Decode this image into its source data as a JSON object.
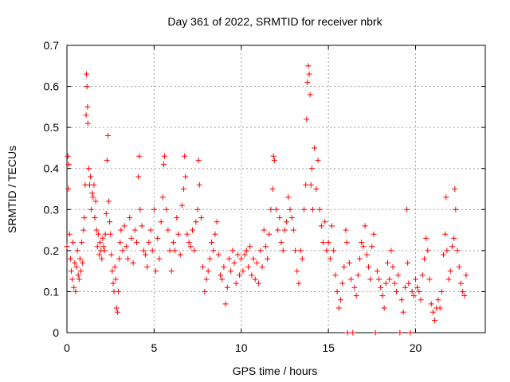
{
  "chart_data": {
    "type": "scatter",
    "title": "Day 361 of 2022, SRMTID for receiver nbrk",
    "xlabel": "GPS time / hours",
    "ylabel": "SRMTID / TECUs",
    "xlim": [
      0,
      24
    ],
    "ylim": [
      0,
      0.7
    ],
    "xticks": [
      0,
      5,
      10,
      15,
      20
    ],
    "xtick_labels": [
      "0",
      "5",
      "10",
      "15",
      "20"
    ],
    "yticks": [
      0,
      0.1,
      0.2,
      0.3,
      0.4,
      0.5,
      0.6,
      0.7
    ],
    "ytick_labels": [
      "0",
      "0.1",
      "0.2",
      "0.3",
      "0.4",
      "0.5",
      "0.6",
      "0.7"
    ],
    "grid": true,
    "marker": "+",
    "series_color": "#ff0000",
    "series": [
      {
        "name": "SRMTID",
        "points": [
          [
            0.0,
            0.21
          ],
          [
            0.05,
            0.43
          ],
          [
            0.08,
            0.35
          ],
          [
            0.1,
            0.41
          ],
          [
            0.15,
            0.24
          ],
          [
            0.2,
            0.18
          ],
          [
            0.25,
            0.15
          ],
          [
            0.3,
            0.13
          ],
          [
            0.35,
            0.22
          ],
          [
            0.4,
            0.11
          ],
          [
            0.45,
            0.17
          ],
          [
            0.5,
            0.1
          ],
          [
            0.55,
            0.16
          ],
          [
            0.6,
            0.2
          ],
          [
            0.65,
            0.14
          ],
          [
            0.7,
            0.13
          ],
          [
            0.75,
            0.18
          ],
          [
            0.8,
            0.15
          ],
          [
            0.85,
            0.22
          ],
          [
            0.9,
            0.17
          ],
          [
            0.95,
            0.25
          ],
          [
            1.0,
            0.28
          ],
          [
            1.05,
            0.36
          ],
          [
            1.1,
            0.53
          ],
          [
            1.12,
            0.63
          ],
          [
            1.15,
            0.6
          ],
          [
            1.18,
            0.55
          ],
          [
            1.2,
            0.51
          ],
          [
            1.25,
            0.4
          ],
          [
            1.3,
            0.36
          ],
          [
            1.35,
            0.38
          ],
          [
            1.4,
            0.3
          ],
          [
            1.45,
            0.34
          ],
          [
            1.5,
            0.33
          ],
          [
            1.55,
            0.36
          ],
          [
            1.6,
            0.28
          ],
          [
            1.65,
            0.32
          ],
          [
            1.7,
            0.25
          ],
          [
            1.75,
            0.21
          ],
          [
            1.8,
            0.24
          ],
          [
            1.85,
            0.19
          ],
          [
            1.9,
            0.22
          ],
          [
            1.95,
            0.2
          ],
          [
            2.0,
            0.18
          ],
          [
            2.05,
            0.23
          ],
          [
            2.1,
            0.21
          ],
          [
            2.15,
            0.2
          ],
          [
            2.2,
            0.24
          ],
          [
            2.25,
            0.29
          ],
          [
            2.3,
            0.42
          ],
          [
            2.35,
            0.48
          ],
          [
            2.4,
            0.32
          ],
          [
            2.45,
            0.27
          ],
          [
            2.5,
            0.24
          ],
          [
            2.55,
            0.19
          ],
          [
            2.6,
            0.15
          ],
          [
            2.65,
            0.12
          ],
          [
            2.7,
            0.1
          ],
          [
            2.75,
            0.16
          ],
          [
            2.8,
            0.13
          ],
          [
            2.85,
            0.06
          ],
          [
            2.9,
            0.05
          ],
          [
            2.95,
            0.1
          ],
          [
            3.0,
            0.18
          ],
          [
            3.05,
            0.22
          ],
          [
            3.1,
            0.25
          ],
          [
            3.2,
            0.2
          ],
          [
            3.3,
            0.26
          ],
          [
            3.4,
            0.21
          ],
          [
            3.5,
            0.18
          ],
          [
            3.6,
            0.28
          ],
          [
            3.7,
            0.23
          ],
          [
            3.8,
            0.17
          ],
          [
            3.9,
            0.25
          ],
          [
            4.0,
            0.22
          ],
          [
            4.1,
            0.38
          ],
          [
            4.15,
            0.43
          ],
          [
            4.2,
            0.3
          ],
          [
            4.3,
            0.26
          ],
          [
            4.4,
            0.2
          ],
          [
            4.5,
            0.19
          ],
          [
            4.6,
            0.16
          ],
          [
            4.7,
            0.22
          ],
          [
            4.8,
            0.25
          ],
          [
            4.9,
            0.2
          ],
          [
            5.0,
            0.3
          ],
          [
            5.1,
            0.15
          ],
          [
            5.2,
            0.23
          ],
          [
            5.3,
            0.18
          ],
          [
            5.4,
            0.27
          ],
          [
            5.5,
            0.33
          ],
          [
            5.55,
            0.41
          ],
          [
            5.6,
            0.43
          ],
          [
            5.7,
            0.3
          ],
          [
            5.8,
            0.25
          ],
          [
            5.9,
            0.2
          ],
          [
            6.0,
            0.15
          ],
          [
            6.1,
            0.22
          ],
          [
            6.2,
            0.2
          ],
          [
            6.3,
            0.28
          ],
          [
            6.4,
            0.24
          ],
          [
            6.5,
            0.19
          ],
          [
            6.6,
            0.31
          ],
          [
            6.7,
            0.35
          ],
          [
            6.75,
            0.43
          ],
          [
            6.8,
            0.38
          ],
          [
            6.9,
            0.24
          ],
          [
            7.0,
            0.22
          ],
          [
            7.1,
            0.21
          ],
          [
            7.2,
            0.25
          ],
          [
            7.3,
            0.2
          ],
          [
            7.4,
            0.27
          ],
          [
            7.5,
            0.3
          ],
          [
            7.55,
            0.42
          ],
          [
            7.6,
            0.36
          ],
          [
            7.7,
            0.28
          ],
          [
            7.8,
            0.16
          ],
          [
            7.9,
            0.1
          ],
          [
            8.0,
            0.13
          ],
          [
            8.1,
            0.15
          ],
          [
            8.2,
            0.18
          ],
          [
            8.3,
            0.22
          ],
          [
            8.4,
            0.2
          ],
          [
            8.5,
            0.24
          ],
          [
            8.6,
            0.27
          ],
          [
            8.7,
            0.19
          ],
          [
            8.8,
            0.14
          ],
          [
            8.9,
            0.13
          ],
          [
            9.0,
            0.16
          ],
          [
            9.1,
            0.07
          ],
          [
            9.2,
            0.11
          ],
          [
            9.3,
            0.18
          ],
          [
            9.4,
            0.15
          ],
          [
            9.5,
            0.2
          ],
          [
            9.6,
            0.17
          ],
          [
            9.7,
            0.12
          ],
          [
            9.8,
            0.19
          ],
          [
            9.9,
            0.14
          ],
          [
            10.0,
            0.18
          ],
          [
            10.1,
            0.15
          ],
          [
            10.2,
            0.19
          ],
          [
            10.3,
            0.2
          ],
          [
            10.4,
            0.16
          ],
          [
            10.5,
            0.21
          ],
          [
            10.6,
            0.14
          ],
          [
            10.7,
            0.18
          ],
          [
            10.8,
            0.13
          ],
          [
            10.9,
            0.17
          ],
          [
            11.0,
            0.12
          ],
          [
            11.1,
            0.2
          ],
          [
            11.2,
            0.16
          ],
          [
            11.3,
            0.25
          ],
          [
            11.4,
            0.21
          ],
          [
            11.5,
            0.18
          ],
          [
            11.6,
            0.24
          ],
          [
            11.7,
            0.3
          ],
          [
            11.8,
            0.35
          ],
          [
            11.85,
            0.43
          ],
          [
            11.9,
            0.42
          ],
          [
            12.0,
            0.3
          ],
          [
            12.1,
            0.25
          ],
          [
            12.2,
            0.28
          ],
          [
            12.3,
            0.22
          ],
          [
            12.4,
            0.2
          ],
          [
            12.5,
            0.25
          ],
          [
            12.6,
            0.27
          ],
          [
            12.7,
            0.33
          ],
          [
            12.8,
            0.3
          ],
          [
            12.9,
            0.28
          ],
          [
            13.0,
            0.25
          ],
          [
            13.1,
            0.2
          ],
          [
            13.2,
            0.15
          ],
          [
            13.3,
            0.12
          ],
          [
            13.4,
            0.2
          ],
          [
            13.5,
            0.18
          ],
          [
            13.6,
            0.3
          ],
          [
            13.7,
            0.36
          ],
          [
            13.75,
            0.52
          ],
          [
            13.8,
            0.61
          ],
          [
            13.85,
            0.65
          ],
          [
            13.9,
            0.63
          ],
          [
            13.95,
            0.58
          ],
          [
            14.0,
            0.36
          ],
          [
            14.05,
            0.4
          ],
          [
            14.1,
            0.3
          ],
          [
            14.2,
            0.45
          ],
          [
            14.3,
            0.35
          ],
          [
            14.4,
            0.42
          ],
          [
            14.5,
            0.3
          ],
          [
            14.6,
            0.26
          ],
          [
            14.7,
            0.22
          ],
          [
            14.8,
            0.27
          ],
          [
            14.9,
            0.2
          ],
          [
            15.0,
            0.22
          ],
          [
            15.1,
            0.18
          ],
          [
            15.2,
            0.26
          ],
          [
            15.3,
            0.2
          ],
          [
            15.4,
            0.14
          ],
          [
            15.5,
            0.1
          ],
          [
            15.6,
            0.06
          ],
          [
            15.7,
            0.08
          ],
          [
            15.8,
            0.12
          ],
          [
            15.9,
            0.16
          ],
          [
            16.0,
            0.25
          ],
          [
            16.05,
            0.22
          ],
          [
            16.1,
            0.0
          ],
          [
            16.2,
            0.17
          ],
          [
            16.3,
            0.13
          ],
          [
            16.4,
            0.0
          ],
          [
            16.5,
            0.11
          ],
          [
            16.6,
            0.09
          ],
          [
            16.7,
            0.14
          ],
          [
            16.8,
            0.18
          ],
          [
            16.9,
            0.22
          ],
          [
            17.0,
            0.21
          ],
          [
            17.1,
            0.26
          ],
          [
            17.2,
            0.19
          ],
          [
            17.3,
            0.16
          ],
          [
            17.4,
            0.13
          ],
          [
            17.5,
            0.21
          ],
          [
            17.6,
            0.24
          ],
          [
            17.7,
            0.0
          ],
          [
            17.8,
            0.15
          ],
          [
            17.9,
            0.13
          ],
          [
            18.0,
            0.11
          ],
          [
            18.1,
            0.09
          ],
          [
            18.2,
            0.06
          ],
          [
            18.3,
            0.12
          ],
          [
            18.4,
            0.17
          ],
          [
            18.5,
            0.13
          ],
          [
            18.6,
            0.2
          ],
          [
            18.7,
            0.16
          ],
          [
            18.8,
            0.12
          ],
          [
            18.9,
            0.1
          ],
          [
            19.0,
            0.14
          ],
          [
            19.1,
            0.0
          ],
          [
            19.2,
            0.08
          ],
          [
            19.3,
            0.05
          ],
          [
            19.4,
            0.11
          ],
          [
            19.5,
            0.3
          ],
          [
            19.55,
            0.17
          ],
          [
            19.6,
            0.12
          ],
          [
            19.7,
            0.0
          ],
          [
            19.8,
            0.1
          ],
          [
            19.9,
            0.09
          ],
          [
            20.0,
            0.13
          ],
          [
            20.1,
            0.11
          ],
          [
            20.2,
            0.1
          ],
          [
            20.3,
            0.08
          ],
          [
            20.4,
            0.14
          ],
          [
            20.5,
            0.18
          ],
          [
            20.6,
            0.23
          ],
          [
            20.7,
            0.2
          ],
          [
            20.8,
            0.13
          ],
          [
            20.9,
            0.07
          ],
          [
            21.0,
            0.05
          ],
          [
            21.1,
            0.03
          ],
          [
            21.2,
            0.06
          ],
          [
            21.3,
            0.08
          ],
          [
            21.4,
            0.06
          ],
          [
            21.5,
            0.1
          ],
          [
            21.6,
            0.19
          ],
          [
            21.7,
            0.24
          ],
          [
            21.75,
            0.33
          ],
          [
            21.8,
            0.2
          ],
          [
            21.9,
            0.13
          ],
          [
            22.0,
            0.15
          ],
          [
            22.1,
            0.21
          ],
          [
            22.2,
            0.23
          ],
          [
            22.25,
            0.35
          ],
          [
            22.3,
            0.3
          ],
          [
            22.4,
            0.2
          ],
          [
            22.5,
            0.16
          ],
          [
            22.6,
            0.12
          ],
          [
            22.7,
            0.1
          ],
          [
            22.8,
            0.09
          ],
          [
            22.9,
            0.14
          ]
        ]
      }
    ]
  }
}
